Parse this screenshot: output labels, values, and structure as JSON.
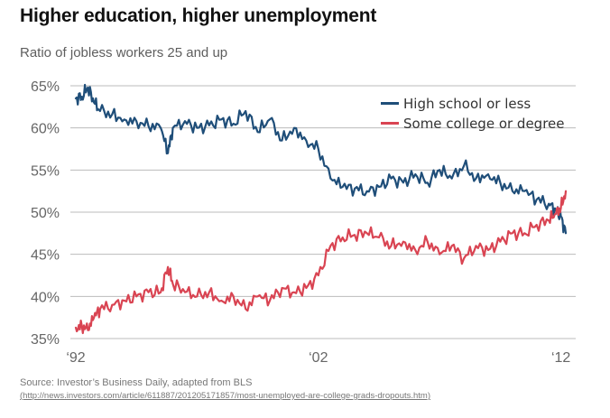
{
  "header": {
    "title": "Higher education, higher unemployment",
    "subtitle": "Ratio of jobless workers 25 and up"
  },
  "footer": {
    "source": "Source: Investor’s Business Daily, adapted from BLS",
    "url": "(http://news.investors.com/article/611887/201205171857/most-unemployed-are-college-grads-dropouts.htm)"
  },
  "chart_data": {
    "type": "line",
    "title": "Higher education, higher unemployment",
    "subtitle": "Ratio of jobless workers 25 and up",
    "ylim": [
      35,
      65
    ],
    "xlim": [
      1992,
      2012.2
    ],
    "yticks": [
      35,
      40,
      45,
      50,
      55,
      60,
      65
    ],
    "ytick_labels": [
      "35%",
      "40%",
      "45%",
      "50%",
      "55%",
      "60%",
      "65%"
    ],
    "xticks": [
      1992,
      2002,
      2012
    ],
    "xtick_labels": [
      "‘92",
      "‘02",
      "‘12"
    ],
    "grid": true,
    "legend": "top-right",
    "colors": {
      "high_school": "#1f4e79",
      "college": "#d94452",
      "grid": "#bbbbbb"
    },
    "series": [
      {
        "name": "High school or less",
        "x": [
          1992.0,
          1992.25,
          1992.5,
          1992.75,
          1993.0,
          1993.5,
          1994.0,
          1994.5,
          1995.0,
          1995.5,
          1995.8,
          1996.0,
          1996.5,
          1997.0,
          1997.5,
          1998.0,
          1998.5,
          1999.0,
          1999.5,
          2000.0,
          2000.5,
          2001.0,
          2001.5,
          2002.0,
          2002.5,
          2003.0,
          2003.5,
          2004.0,
          2004.5,
          2005.0,
          2005.5,
          2006.0,
          2006.5,
          2007.0,
          2007.5,
          2008.0,
          2008.5,
          2009.0,
          2009.5,
          2010.0,
          2010.5,
          2011.0,
          2011.5,
          2011.8,
          2012.0,
          2012.2
        ],
        "values": [
          63.5,
          63.7,
          64.8,
          63.0,
          62.0,
          61.6,
          61.0,
          60.8,
          60.2,
          60.0,
          57.0,
          60.0,
          60.8,
          60.0,
          60.3,
          61.0,
          60.5,
          62.0,
          59.5,
          61.0,
          58.5,
          60.0,
          58.5,
          57.5,
          54.0,
          53.0,
          52.8,
          52.5,
          53.0,
          54.0,
          53.5,
          54.5,
          53.5,
          55.0,
          54.0,
          55.5,
          54.0,
          54.5,
          53.5,
          52.5,
          52.5,
          51.5,
          51.0,
          50.3,
          49.5,
          47.5
        ]
      },
      {
        "name": "Some college or degree",
        "x": [
          1992.0,
          1992.25,
          1992.5,
          1992.75,
          1993.0,
          1993.5,
          1994.0,
          1994.5,
          1995.0,
          1995.5,
          1995.8,
          1996.0,
          1996.5,
          1997.0,
          1997.5,
          1998.0,
          1998.5,
          1999.0,
          1999.5,
          2000.0,
          2000.5,
          2001.0,
          2001.5,
          2002.0,
          2002.5,
          2003.0,
          2003.5,
          2004.0,
          2004.5,
          2005.0,
          2005.5,
          2006.0,
          2006.5,
          2007.0,
          2007.5,
          2008.0,
          2008.5,
          2009.0,
          2009.5,
          2010.0,
          2010.5,
          2011.0,
          2011.5,
          2011.8,
          2012.0,
          2012.2
        ],
        "values": [
          36.3,
          36.5,
          36.0,
          37.5,
          38.5,
          39.0,
          39.5,
          40.0,
          40.5,
          40.5,
          43.5,
          41.5,
          40.5,
          40.0,
          40.5,
          39.5,
          40.0,
          38.5,
          40.0,
          39.5,
          41.0,
          40.5,
          41.0,
          42.5,
          46.0,
          47.0,
          47.3,
          47.5,
          47.0,
          46.0,
          46.5,
          45.5,
          46.5,
          45.0,
          46.0,
          44.5,
          46.0,
          45.5,
          46.5,
          47.5,
          47.5,
          48.5,
          49.0,
          49.8,
          50.5,
          52.5
        ]
      }
    ]
  }
}
